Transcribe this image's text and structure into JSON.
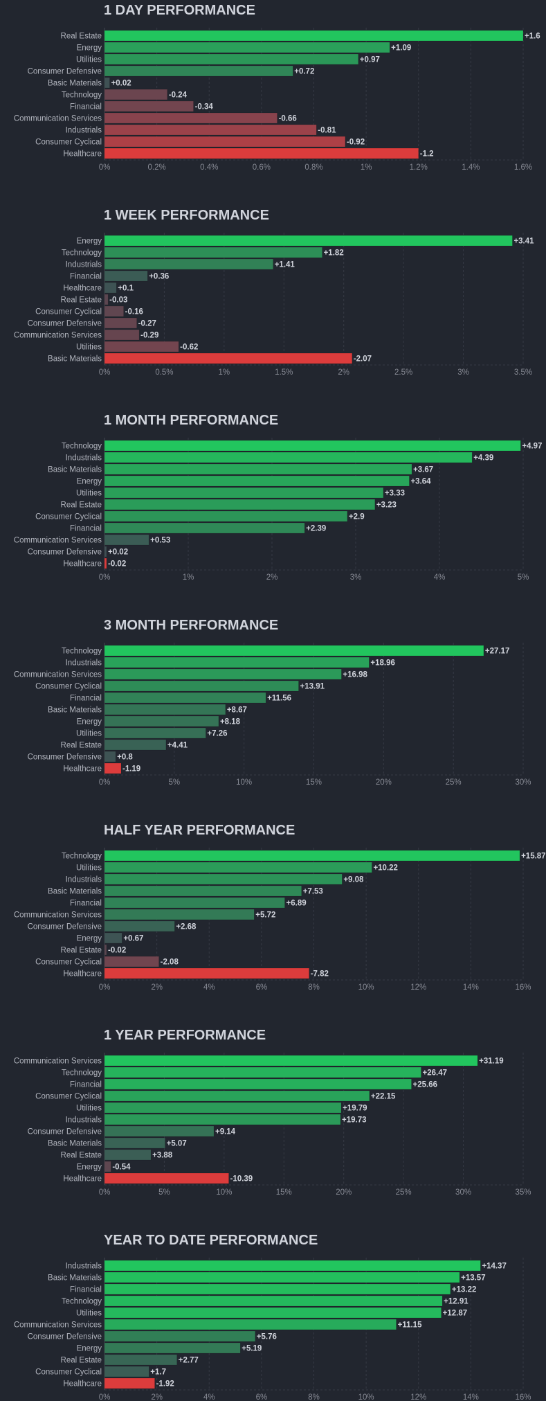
{
  "chart_data": [
    {
      "type": "bar",
      "orientation": "horizontal",
      "title": "1 DAY PERFORMANCE",
      "categories": [
        "Real Estate",
        "Energy",
        "Utilities",
        "Consumer Defensive",
        "Basic Materials",
        "Technology",
        "Financial",
        "Communication Services",
        "Industrials",
        "Consumer Cyclical",
        "Healthcare"
      ],
      "values": [
        1.6,
        1.09,
        0.97,
        0.72,
        0.02,
        -0.24,
        -0.34,
        -0.66,
        -0.81,
        -0.92,
        -1.2
      ],
      "value_labels": [
        "+1.6",
        "+1.09",
        "+0.97",
        "+0.72",
        "+0.02",
        "-0.24",
        "-0.34",
        "-0.66",
        "-0.81",
        "-0.92",
        "-1.2"
      ],
      "xticks": [
        "0%",
        "0.2%",
        "0.4%",
        "0.6%",
        "0.8%",
        "1%",
        "1.2%",
        "1.4%",
        "1.6%"
      ],
      "xlim": [
        0,
        1.6
      ]
    },
    {
      "type": "bar",
      "orientation": "horizontal",
      "title": "1 WEEK PERFORMANCE",
      "categories": [
        "Energy",
        "Technology",
        "Industrials",
        "Financial",
        "Healthcare",
        "Real Estate",
        "Consumer Cyclical",
        "Consumer Defensive",
        "Communication Services",
        "Utilities",
        "Basic Materials"
      ],
      "values": [
        3.41,
        1.82,
        1.41,
        0.36,
        0.1,
        -0.03,
        -0.16,
        -0.27,
        -0.29,
        -0.62,
        -2.07
      ],
      "value_labels": [
        "+3.41",
        "+1.82",
        "+1.41",
        "+0.36",
        "+0.1",
        "-0.03",
        "-0.16",
        "-0.27",
        "-0.29",
        "-0.62",
        "-2.07"
      ],
      "xticks": [
        "0%",
        "0.5%",
        "1%",
        "1.5%",
        "2%",
        "2.5%",
        "3%",
        "3.5%"
      ],
      "xlim": [
        0,
        3.5
      ]
    },
    {
      "type": "bar",
      "orientation": "horizontal",
      "title": "1 MONTH PERFORMANCE",
      "categories": [
        "Technology",
        "Industrials",
        "Basic Materials",
        "Energy",
        "Utilities",
        "Real Estate",
        "Consumer Cyclical",
        "Financial",
        "Communication Services",
        "Consumer Defensive",
        "Healthcare"
      ],
      "values": [
        4.97,
        4.39,
        3.67,
        3.64,
        3.33,
        3.23,
        2.9,
        2.39,
        0.53,
        0.02,
        -0.02
      ],
      "value_labels": [
        "+4.97",
        "+4.39",
        "+3.67",
        "+3.64",
        "+3.33",
        "+3.23",
        "+2.9",
        "+2.39",
        "+0.53",
        "+0.02",
        "-0.02"
      ],
      "xticks": [
        "0%",
        "1%",
        "2%",
        "3%",
        "4%",
        "5%"
      ],
      "xlim": [
        0,
        5
      ]
    },
    {
      "type": "bar",
      "orientation": "horizontal",
      "title": "3 MONTH PERFORMANCE",
      "categories": [
        "Technology",
        "Industrials",
        "Communication Services",
        "Consumer Cyclical",
        "Financial",
        "Basic Materials",
        "Energy",
        "Utilities",
        "Real Estate",
        "Consumer Defensive",
        "Healthcare"
      ],
      "values": [
        27.17,
        18.96,
        16.98,
        13.91,
        11.56,
        8.67,
        8.18,
        7.26,
        4.41,
        0.8,
        -1.19
      ],
      "value_labels": [
        "+27.17",
        "+18.96",
        "+16.98",
        "+13.91",
        "+11.56",
        "+8.67",
        "+8.18",
        "+7.26",
        "+4.41",
        "+0.8",
        "-1.19"
      ],
      "xticks": [
        "0%",
        "5%",
        "10%",
        "15%",
        "20%",
        "25%",
        "30%"
      ],
      "xlim": [
        0,
        30
      ]
    },
    {
      "type": "bar",
      "orientation": "horizontal",
      "title": "HALF YEAR PERFORMANCE",
      "categories": [
        "Technology",
        "Utilities",
        "Industrials",
        "Basic Materials",
        "Financial",
        "Communication Services",
        "Consumer Defensive",
        "Energy",
        "Real Estate",
        "Consumer Cyclical",
        "Healthcare"
      ],
      "values": [
        15.87,
        10.22,
        9.08,
        7.53,
        6.89,
        5.72,
        2.68,
        0.67,
        -0.02,
        -2.08,
        -7.82
      ],
      "value_labels": [
        "+15.87",
        "+10.22",
        "+9.08",
        "+7.53",
        "+6.89",
        "+5.72",
        "+2.68",
        "+0.67",
        "-0.02",
        "-2.08",
        "-7.82"
      ],
      "xticks": [
        "0%",
        "2%",
        "4%",
        "6%",
        "8%",
        "10%",
        "12%",
        "14%",
        "16%"
      ],
      "xlim": [
        0,
        16
      ]
    },
    {
      "type": "bar",
      "orientation": "horizontal",
      "title": "1 YEAR PERFORMANCE",
      "categories": [
        "Communication Services",
        "Technology",
        "Financial",
        "Consumer Cyclical",
        "Utilities",
        "Industrials",
        "Consumer Defensive",
        "Basic Materials",
        "Real Estate",
        "Energy",
        "Healthcare"
      ],
      "values": [
        31.19,
        26.47,
        25.66,
        22.15,
        19.79,
        19.73,
        9.14,
        5.07,
        3.88,
        -0.54,
        -10.39
      ],
      "value_labels": [
        "+31.19",
        "+26.47",
        "+25.66",
        "+22.15",
        "+19.79",
        "+19.73",
        "+9.14",
        "+5.07",
        "+3.88",
        "-0.54",
        "-10.39"
      ],
      "xticks": [
        "0%",
        "5%",
        "10%",
        "15%",
        "20%",
        "25%",
        "30%",
        "35%"
      ],
      "xlim": [
        0,
        35
      ]
    },
    {
      "type": "bar",
      "orientation": "horizontal",
      "title": "YEAR TO DATE PERFORMANCE",
      "categories": [
        "Industrials",
        "Basic Materials",
        "Financial",
        "Technology",
        "Utilities",
        "Communication Services",
        "Consumer Defensive",
        "Energy",
        "Real Estate",
        "Consumer Cyclical",
        "Healthcare"
      ],
      "values": [
        14.37,
        13.57,
        13.22,
        12.91,
        12.87,
        11.15,
        5.76,
        5.19,
        2.77,
        1.7,
        -1.92
      ],
      "value_labels": [
        "+14.37",
        "+13.57",
        "+13.22",
        "+12.91",
        "+12.87",
        "+11.15",
        "+5.76",
        "+5.19",
        "+2.77",
        "+1.7",
        "-1.92"
      ],
      "xticks": [
        "0%",
        "2%",
        "4%",
        "6%",
        "8%",
        "10%",
        "12%",
        "14%",
        "16%"
      ],
      "xlim": [
        0,
        16
      ]
    }
  ],
  "colors": {
    "background": "#22262f",
    "positive_bright": "#22c55e",
    "positive_dark": "#2e8b57",
    "neutral": "#3f4f54",
    "negative_muted": "#5a4650",
    "negative_bright": "#dc3c3c"
  }
}
